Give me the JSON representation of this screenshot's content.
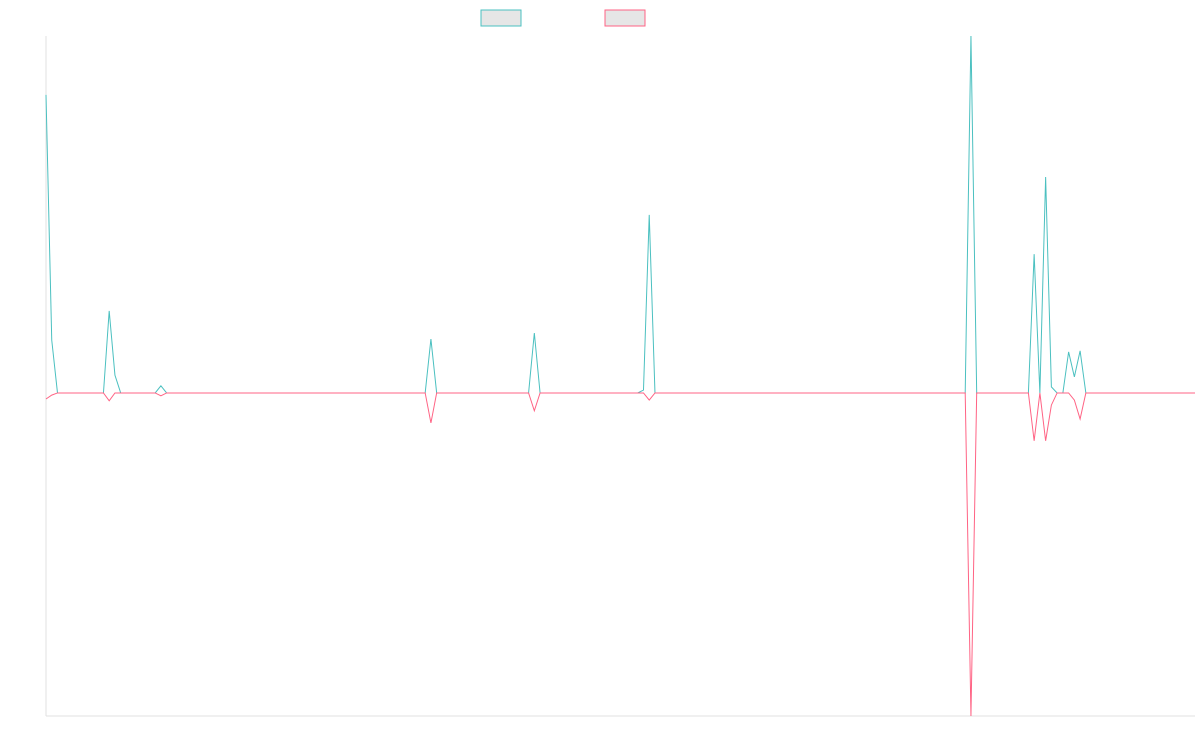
{
  "chart_data": {
    "type": "line",
    "legend": "top",
    "ylim": [
      -90.5,
      100
    ],
    "series": [
      {
        "color": "#4bc0c0",
        "values": [
          83.5,
          14.8,
          0,
          0,
          0,
          0,
          0,
          0,
          0,
          0,
          0,
          23,
          5,
          0,
          0,
          0,
          0,
          0,
          0,
          0,
          2,
          0,
          0,
          0,
          0,
          0,
          0,
          0,
          0,
          0,
          0,
          0,
          0,
          0,
          0,
          0,
          0,
          0,
          0,
          0,
          0,
          0,
          0,
          0,
          0,
          0,
          0,
          0,
          0,
          0,
          0,
          0,
          0,
          0,
          0,
          0,
          0,
          0,
          0,
          0,
          0,
          0,
          0,
          0,
          0,
          0,
          0,
          15.1,
          0,
          0,
          0,
          0,
          0,
          0,
          0,
          0,
          0,
          0,
          0,
          0,
          0,
          0,
          0,
          0,
          0,
          16.8,
          0,
          0,
          0,
          0,
          0,
          0,
          0,
          0,
          0,
          0,
          0,
          0,
          0,
          0,
          0,
          0,
          0,
          0,
          0.8,
          49.9,
          0,
          0,
          0,
          0,
          0,
          0,
          0,
          0,
          0,
          0,
          0,
          0,
          0,
          0,
          0,
          0,
          0,
          0,
          0,
          0,
          0,
          0,
          0,
          0,
          0,
          0,
          0,
          0,
          0,
          0,
          0,
          0,
          0,
          0,
          0,
          0,
          0,
          0,
          0,
          0,
          0,
          0,
          0,
          0,
          0,
          0,
          0,
          0,
          0,
          0,
          0,
          0,
          0,
          0,
          0,
          100,
          0,
          0,
          0,
          0,
          0,
          0,
          0,
          0,
          0,
          0,
          38.9,
          0,
          60.5,
          1.7,
          0,
          0,
          11.5,
          4.5,
          11.8,
          0,
          0,
          0,
          0,
          0,
          0,
          0,
          0,
          0,
          0,
          0,
          0,
          0,
          0,
          0,
          0,
          0,
          0,
          0,
          0
        ]
      },
      {
        "color": "#ff6384",
        "values": [
          -1.7,
          -0.6,
          0,
          0,
          0,
          0,
          0,
          0,
          0,
          0,
          0,
          -2.2,
          0,
          0,
          0,
          0,
          0,
          0,
          0,
          0,
          -0.8,
          0,
          0,
          0,
          0,
          0,
          0,
          0,
          0,
          0,
          0,
          0,
          0,
          0,
          0,
          0,
          0,
          0,
          0,
          0,
          0,
          0,
          0,
          0,
          0,
          0,
          0,
          0,
          0,
          0,
          0,
          0,
          0,
          0,
          0,
          0,
          0,
          0,
          0,
          0,
          0,
          0,
          0,
          0,
          0,
          0,
          0,
          -8.4,
          0,
          0,
          0,
          0,
          0,
          0,
          0,
          0,
          0,
          0,
          0,
          0,
          0,
          0,
          0,
          0,
          0,
          -5,
          0,
          0,
          0,
          0,
          0,
          0,
          0,
          0,
          0,
          0,
          0,
          0,
          0,
          0,
          0,
          0,
          0,
          0,
          0,
          -2,
          0,
          0,
          0,
          0,
          0,
          0,
          0,
          0,
          0,
          0,
          0,
          0,
          0,
          0,
          0,
          0,
          0,
          0,
          0,
          0,
          0,
          0,
          0,
          0,
          0,
          0,
          0,
          0,
          0,
          0,
          0,
          0,
          0,
          0,
          0,
          0,
          0,
          0,
          0,
          0,
          0,
          0,
          0,
          0,
          0,
          0,
          0,
          0,
          0,
          0,
          0,
          0,
          0,
          0,
          0,
          -90.5,
          0,
          0,
          0,
          0,
          0,
          0,
          0,
          0,
          0,
          0,
          -13.4,
          0,
          -13.4,
          -3.4,
          0,
          0,
          0,
          -2,
          -7.3,
          0,
          0,
          0,
          0,
          0,
          0,
          0,
          0,
          0,
          0,
          0,
          0,
          0,
          0,
          0,
          0,
          0,
          0,
          0,
          0
        ]
      }
    ]
  }
}
